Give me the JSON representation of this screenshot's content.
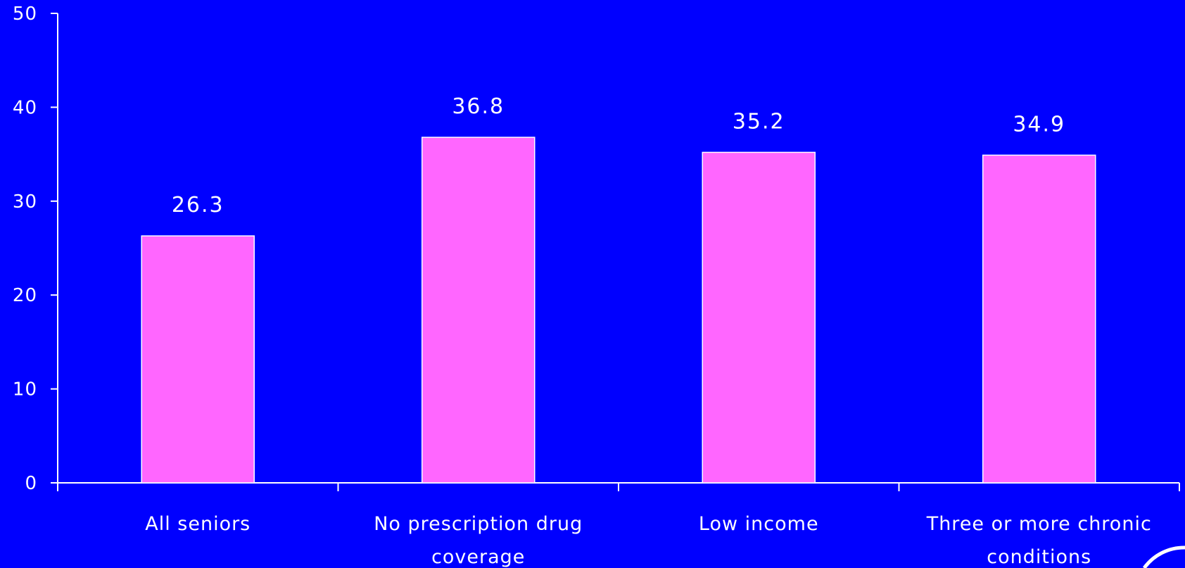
{
  "chart_data": {
    "type": "bar",
    "title": "",
    "xlabel": "",
    "ylabel": "",
    "categories": [
      [
        "All seniors"
      ],
      [
        "No prescription drug",
        "coverage"
      ],
      [
        "Low income"
      ],
      [
        "Three or more chronic",
        "conditions"
      ]
    ],
    "values": [
      26.3,
      36.8,
      35.2,
      34.9
    ],
    "value_labels": [
      "26.3",
      "36.8",
      "35.2",
      "34.9"
    ],
    "ylim": [
      0,
      50
    ],
    "yticks": [
      0,
      10,
      20,
      30,
      40,
      50
    ],
    "ytick_labels": [
      "0",
      "10",
      "20",
      "30",
      "40",
      "50"
    ],
    "grid": false,
    "legend": "none"
  },
  "colors": {
    "background": "#0000ff",
    "bar_fill": "#ff66ff",
    "bar_stroke": "#ffffff",
    "axis": "#ffffff",
    "text": "#ffffff"
  }
}
